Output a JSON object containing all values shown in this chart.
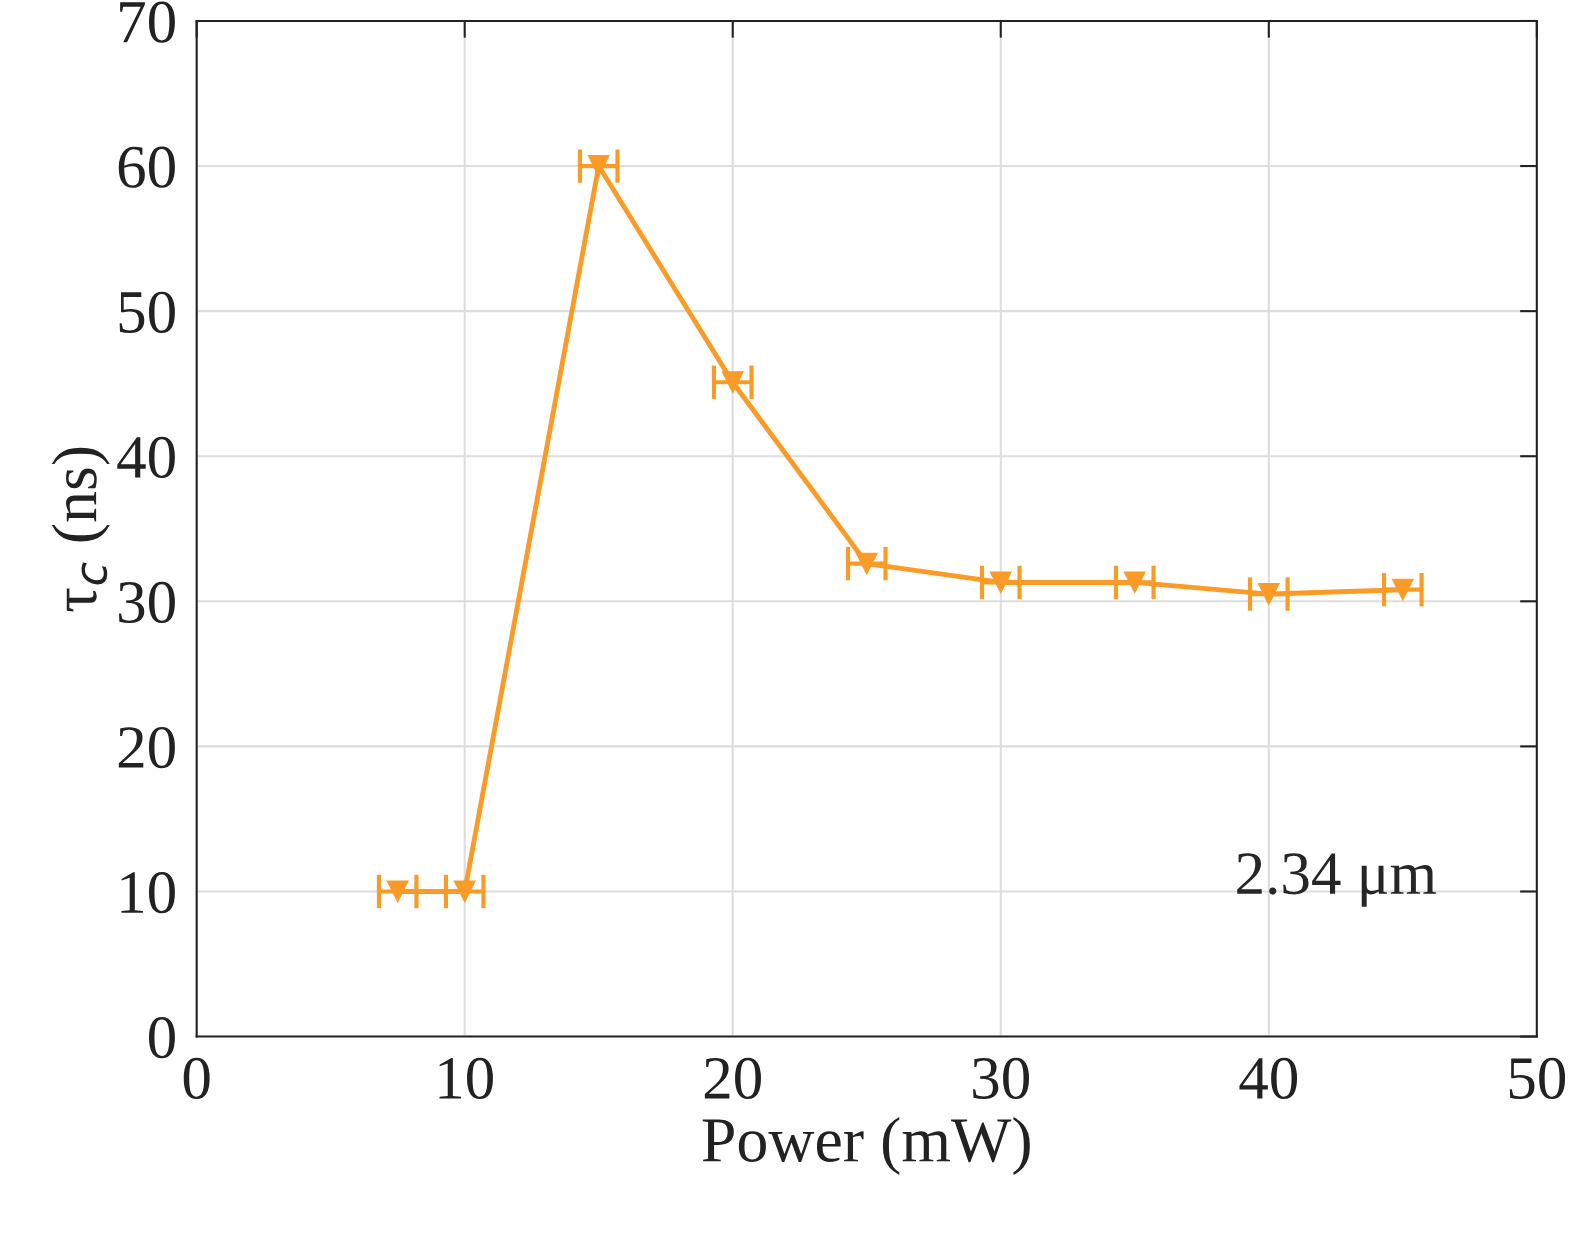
{
  "chart_data": {
    "type": "line",
    "xlabel": "Power (mW)",
    "ylabel": "τ$_{c}$ (ns)",
    "x": [
      7.5,
      10,
      15,
      20,
      25,
      30,
      35,
      40,
      45
    ],
    "series": [
      {
        "color": "#f99b26",
        "values": [
          10.0,
          10.0,
          60.0,
          45.1,
          32.6,
          31.3,
          31.3,
          30.5,
          30.8
        ],
        "xerrors": [
          0.7,
          0.7,
          0.7,
          0.7,
          0.7,
          0.7,
          0.7,
          0.7,
          0.7
        ]
      }
    ],
    "xlim": [
      0,
      50
    ],
    "xticks": [
      0,
      10,
      20,
      30,
      40,
      50
    ],
    "ylim": [
      0,
      70
    ],
    "yticks": [
      0,
      10,
      20,
      30,
      40,
      50,
      60,
      70
    ],
    "grid": true,
    "marker": "triangle",
    "line_style": "solid",
    "annotations": [
      "2.34 μm"
    ]
  }
}
